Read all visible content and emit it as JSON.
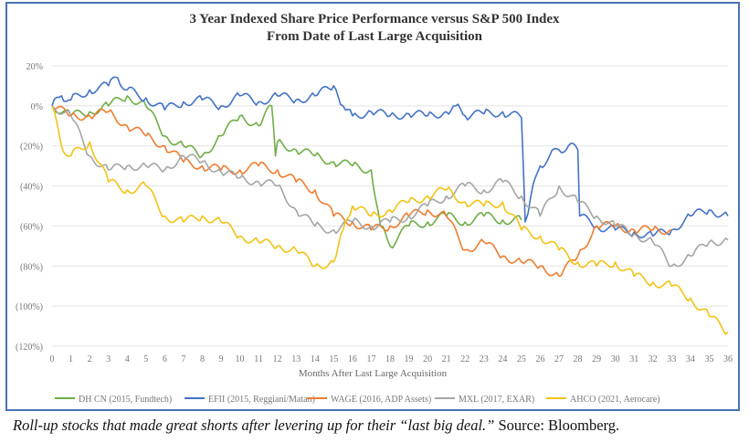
{
  "chart_data": {
    "type": "line",
    "title": "3 Year Indexed Share Price Performance versus S&P 500 Index",
    "subtitle": "From Date of Last Large Acquisition",
    "xlabel": "Months After Last Large Acquisition",
    "ylabel": "",
    "xlim": [
      0,
      36
    ],
    "ylim": [
      -120,
      20
    ],
    "x_ticks": [
      "0",
      "1",
      "2",
      "3",
      "4",
      "5",
      "6",
      "7",
      "8",
      "9",
      "10",
      "11",
      "12",
      "13",
      "14",
      "15",
      "16",
      "17",
      "18",
      "19",
      "20",
      "21",
      "22",
      "23",
      "24",
      "25",
      "26",
      "27",
      "28",
      "29",
      "30",
      "31",
      "32",
      "33",
      "34",
      "35",
      "36"
    ],
    "y_ticks": [
      {
        "v": 20,
        "label": "20%"
      },
      {
        "v": 0,
        "label": "0%"
      },
      {
        "v": -20,
        "label": "(20%)"
      },
      {
        "v": -40,
        "label": "(40%)"
      },
      {
        "v": -60,
        "label": "(60%)"
      },
      {
        "v": -80,
        "label": "(80%)"
      },
      {
        "v": -100,
        "label": "(100%)"
      },
      {
        "v": -120,
        "label": "(120%)"
      }
    ],
    "grid": "horizontal",
    "legend_position": "bottom",
    "series": [
      {
        "name": "DH CN (2015, Fundtech)",
        "color": "#70ad47",
        "points": [
          [
            0,
            0
          ],
          [
            1,
            -5
          ],
          [
            2,
            -3
          ],
          [
            3,
            0
          ],
          [
            4,
            5
          ],
          [
            5,
            0
          ],
          [
            6,
            -15
          ],
          [
            7,
            -20
          ],
          [
            8,
            -25
          ],
          [
            9,
            -15
          ],
          [
            10,
            -5
          ],
          [
            11,
            -10
          ],
          [
            11.7,
            0
          ],
          [
            11.9,
            -25
          ],
          [
            12,
            -18
          ],
          [
            13,
            -22
          ],
          [
            14,
            -25
          ],
          [
            15,
            -28
          ],
          [
            16,
            -30
          ],
          [
            17,
            -32
          ],
          [
            17.5,
            -60
          ],
          [
            18,
            -70
          ],
          [
            19,
            -60
          ],
          [
            20,
            -58
          ],
          [
            21,
            -55
          ],
          [
            22,
            -58
          ],
          [
            23,
            -55
          ],
          [
            24,
            -57
          ],
          [
            25,
            -57
          ]
        ]
      },
      {
        "name": "EFII (2015, Reggiani/Matan)",
        "color": "#4472c4",
        "points": [
          [
            0,
            0
          ],
          [
            0.5,
            5
          ],
          [
            1,
            3
          ],
          [
            2,
            8
          ],
          [
            3,
            10
          ],
          [
            3.5,
            14
          ],
          [
            4,
            8
          ],
          [
            5,
            4
          ],
          [
            6,
            -2
          ],
          [
            7,
            2
          ],
          [
            8,
            3
          ],
          [
            9,
            0
          ],
          [
            10,
            5
          ],
          [
            11,
            2
          ],
          [
            12,
            5
          ],
          [
            13,
            3
          ],
          [
            14,
            5
          ],
          [
            15,
            10
          ],
          [
            15.5,
            0
          ],
          [
            16,
            -5
          ],
          [
            17,
            -3
          ],
          [
            18,
            -5
          ],
          [
            19,
            -4
          ],
          [
            20,
            -5
          ],
          [
            21,
            -3
          ],
          [
            21.5,
            0
          ],
          [
            22,
            -5
          ],
          [
            23,
            -4
          ],
          [
            24,
            -3
          ],
          [
            25,
            -6
          ],
          [
            25.2,
            -58
          ],
          [
            25.5,
            -45
          ],
          [
            26,
            -30
          ],
          [
            26.5,
            -25
          ],
          [
            27,
            -22
          ],
          [
            27.5,
            -20
          ],
          [
            28,
            -22
          ],
          [
            28.1,
            -55
          ],
          [
            29,
            -60
          ],
          [
            30,
            -62
          ],
          [
            31,
            -63
          ],
          [
            32,
            -65
          ],
          [
            33,
            -62
          ],
          [
            34,
            -55
          ],
          [
            35,
            -52
          ],
          [
            36,
            -55
          ]
        ]
      },
      {
        "name": "WAGE (2016, ADP Assets)",
        "color": "#ed7d31",
        "points": [
          [
            0,
            0
          ],
          [
            1,
            -5
          ],
          [
            2,
            -5
          ],
          [
            3,
            -3
          ],
          [
            4,
            -10
          ],
          [
            5,
            -15
          ],
          [
            6,
            -20
          ],
          [
            7,
            -28
          ],
          [
            8,
            -30
          ],
          [
            9,
            -32
          ],
          [
            10,
            -32
          ],
          [
            11,
            -30
          ],
          [
            12,
            -32
          ],
          [
            13,
            -38
          ],
          [
            14,
            -42
          ],
          [
            15,
            -55
          ],
          [
            16,
            -58
          ],
          [
            17,
            -62
          ],
          [
            18,
            -60
          ],
          [
            19,
            -55
          ],
          [
            20,
            -52
          ],
          [
            21,
            -55
          ],
          [
            22,
            -72
          ],
          [
            23,
            -68
          ],
          [
            24,
            -75
          ],
          [
            25,
            -78
          ],
          [
            26,
            -80
          ],
          [
            27,
            -85
          ],
          [
            28,
            -75
          ],
          [
            29,
            -60
          ],
          [
            30,
            -60
          ],
          [
            31,
            -62
          ],
          [
            32,
            -62
          ],
          [
            33,
            -62
          ]
        ]
      },
      {
        "name": "MXL (2017, EXAR)",
        "color": "#a5a5a5",
        "points": [
          [
            0,
            0
          ],
          [
            1,
            -5
          ],
          [
            2,
            -25
          ],
          [
            3,
            -32
          ],
          [
            4,
            -30
          ],
          [
            5,
            -30
          ],
          [
            6,
            -32
          ],
          [
            7,
            -25
          ],
          [
            8,
            -28
          ],
          [
            9,
            -33
          ],
          [
            10,
            -36
          ],
          [
            11,
            -38
          ],
          [
            12,
            -40
          ],
          [
            13,
            -52
          ],
          [
            14,
            -60
          ],
          [
            15,
            -62
          ],
          [
            16,
            -58
          ],
          [
            17,
            -60
          ],
          [
            18,
            -58
          ],
          [
            19,
            -55
          ],
          [
            20,
            -50
          ],
          [
            21,
            -45
          ],
          [
            22,
            -40
          ],
          [
            23,
            -42
          ],
          [
            24,
            -38
          ],
          [
            25,
            -45
          ],
          [
            26,
            -55
          ],
          [
            27,
            -40
          ],
          [
            28,
            -48
          ],
          [
            29,
            -55
          ],
          [
            30,
            -60
          ],
          [
            31,
            -64
          ],
          [
            32,
            -68
          ],
          [
            33,
            -80
          ],
          [
            34,
            -75
          ],
          [
            35,
            -68
          ],
          [
            36,
            -67
          ]
        ]
      },
      {
        "name": "AHCO (2021, Aerocare)",
        "color": "#f2c314",
        "points": [
          [
            0,
            0
          ],
          [
            0.5,
            -20
          ],
          [
            1,
            -25
          ],
          [
            2,
            -18
          ],
          [
            3,
            -38
          ],
          [
            4,
            -42
          ],
          [
            5,
            -40
          ],
          [
            6,
            -55
          ],
          [
            7,
            -58
          ],
          [
            8,
            -55
          ],
          [
            9,
            -58
          ],
          [
            10,
            -65
          ],
          [
            11,
            -68
          ],
          [
            12,
            -70
          ],
          [
            13,
            -72
          ],
          [
            14,
            -80
          ],
          [
            15,
            -78
          ],
          [
            15.5,
            -62
          ],
          [
            16,
            -50
          ],
          [
            17,
            -55
          ],
          [
            18,
            -52
          ],
          [
            19,
            -48
          ],
          [
            20,
            -45
          ],
          [
            21,
            -42
          ],
          [
            22,
            -48
          ],
          [
            23,
            -50
          ],
          [
            24,
            -48
          ],
          [
            25,
            -62
          ],
          [
            26,
            -65
          ],
          [
            27,
            -72
          ],
          [
            28,
            -78
          ],
          [
            29,
            -80
          ],
          [
            30,
            -78
          ],
          [
            31,
            -85
          ],
          [
            32,
            -88
          ],
          [
            33,
            -90
          ],
          [
            34,
            -96
          ],
          [
            35,
            -105
          ],
          [
            36,
            -113
          ]
        ]
      }
    ]
  },
  "caption": {
    "italic": "Roll-up stocks that made great shorts after levering up for their “last big deal.”",
    "source": " Source: Bloomberg."
  }
}
